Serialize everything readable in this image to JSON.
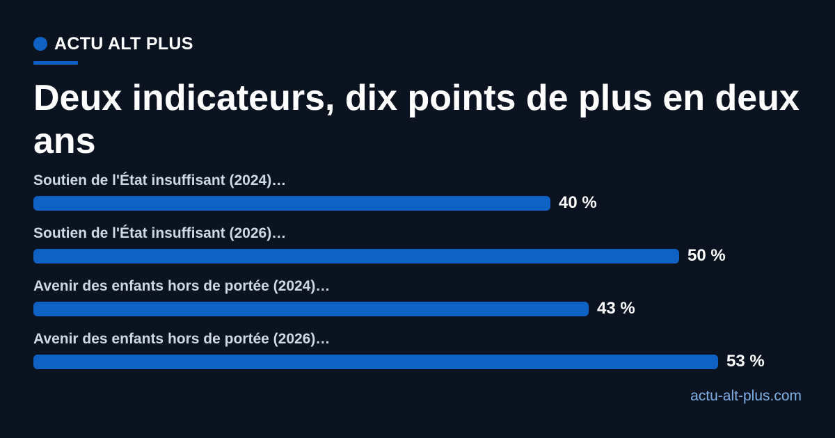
{
  "brand": {
    "name": "ACTU ALT PLUS",
    "accent_color": "#0f62c4"
  },
  "headline": "Deux indicateurs, dix points de plus en deux ans",
  "source": "actu-alt-plus.com",
  "chart_data": {
    "type": "bar",
    "orientation": "horizontal",
    "title": "Deux indicateurs, dix points de plus en deux ans",
    "categories": [
      "Soutien de l'État insuffisant (2024)…",
      "Soutien de l'État insuffisant (2026)…",
      "Avenir des enfants hors de portée (2024)…",
      "Avenir des enfants hors de portée (2026)…"
    ],
    "values": [
      40,
      50,
      43,
      53
    ],
    "value_labels": [
      "40 %",
      "50 %",
      "43 %",
      "53 %"
    ],
    "unit": "%",
    "xlim": [
      0,
      53
    ],
    "bar_color": "#0f62c4",
    "grid": false,
    "legend": "none"
  }
}
